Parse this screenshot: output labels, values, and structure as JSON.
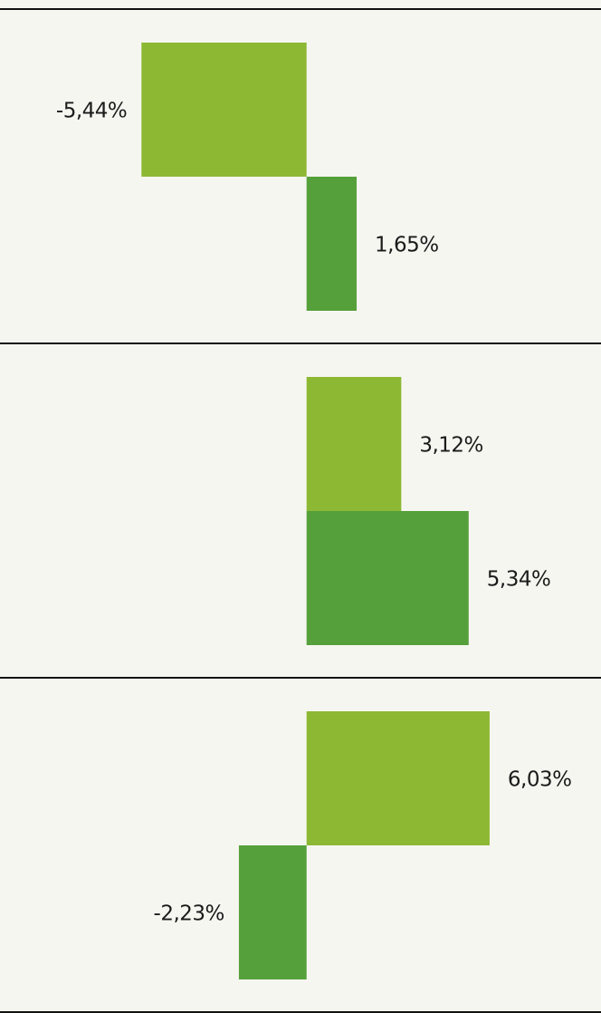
{
  "chart_data": {
    "type": "bar",
    "orientation": "horizontal",
    "series": [
      {
        "color": "#8db833",
        "values": [
          -5.44,
          3.12,
          6.03
        ],
        "value_labels": [
          "-5,44%",
          "3,12%",
          "6,03%"
        ]
      },
      {
        "color": "#55a03a",
        "values": [
          1.65,
          5.34,
          -2.23
        ],
        "value_labels": [
          "1,65%",
          "5,34%",
          "-2,23%"
        ]
      }
    ],
    "xlim": [
      -10.1,
      9.7
    ]
  }
}
